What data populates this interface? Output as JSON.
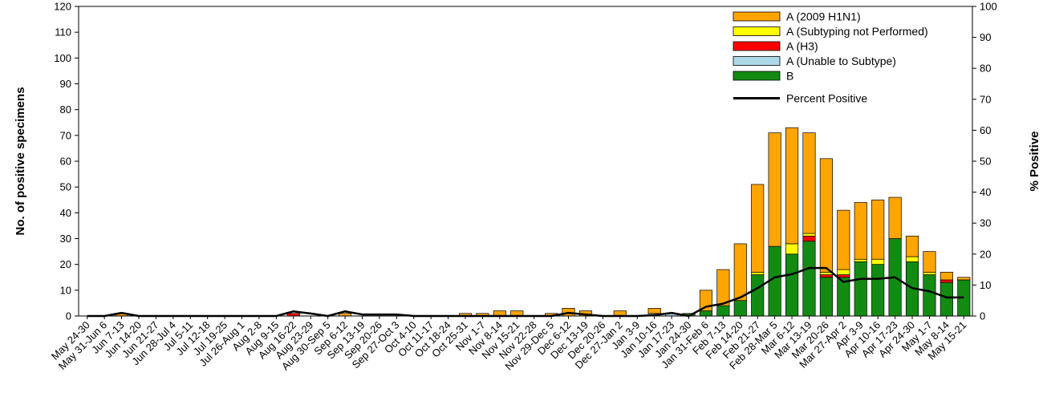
{
  "chart_data": {
    "type": "bar",
    "stacked": true,
    "title": "",
    "ylabel": "No. of positive specimens",
    "y2label": "% Positive",
    "ylim": [
      0,
      120
    ],
    "y2lim": [
      0,
      100
    ],
    "yticks": [
      "0",
      "10",
      "20",
      "30",
      "40",
      "50",
      "60",
      "70",
      "80",
      "90",
      "100",
      "110",
      "120"
    ],
    "y2ticks": [
      "0",
      "10",
      "20",
      "30",
      "40",
      "50",
      "60",
      "70",
      "80",
      "90",
      "100"
    ],
    "legend_position": "top-right",
    "categories": [
      "May 24-30",
      "May 31-Jun 6",
      "Jun 7-13",
      "Jun 14-20",
      "Jun 21-27",
      "Jun 28-Jul 4",
      "Jul 5-11",
      "Jul 12-18",
      "Jul 19-25",
      "Jul 26-Aug 1",
      "Aug 2-8",
      "Aug 9-15",
      "Aug 16-22",
      "Aug 23-29",
      "Aug 30-Sep 5",
      "Sep 6-12",
      "Sep 13-19",
      "Sep 20-26",
      "Sep 27-Oct 3",
      "Oct 4-10",
      "Oct 11-17",
      "Oct 18-24",
      "Oct 25-31",
      "Nov 1-7",
      "Nov 8-14",
      "Nov 15-21",
      "Nov 22-28",
      "Nov 29-Dec 5",
      "Dec 6-12",
      "Dec 13-19",
      "Dec 20-26",
      "Dec 27-Jan 2",
      "Jan 3-9",
      "Jan 10-16",
      "Jan 17-23",
      "Jan 24-30",
      "Jan 31-Feb 6",
      "Feb 7-13",
      "Feb 14-20",
      "Feb 21-27",
      "Feb 28-Mar 5",
      "Mar 6-12",
      "Mar 13-19",
      "Mar 20-26",
      "Mar 27-Apr 2",
      "Apr 3-9",
      "Apr 10-16",
      "Apr 17-23",
      "Apr 24-30",
      "May 1-7",
      "May 8-14",
      "May 15-21"
    ],
    "series": [
      {
        "name": "B",
        "color": "#138b13",
        "values": [
          0,
          0,
          0,
          0,
          0,
          0,
          0,
          0,
          0,
          0,
          0,
          0,
          0,
          0,
          0,
          0,
          0,
          0,
          0,
          0,
          0,
          0,
          0,
          0,
          0,
          0,
          0,
          0,
          0,
          0,
          0,
          0,
          0,
          0,
          0,
          1,
          2,
          4,
          6,
          16,
          27,
          24,
          29,
          15,
          15,
          21,
          20,
          30,
          21,
          16,
          13,
          14
        ]
      },
      {
        "name": "A (Unable to Subtype)",
        "color": "#add8e6",
        "values": [
          0,
          0,
          0,
          0,
          0,
          0,
          0,
          0,
          0,
          0,
          0,
          0,
          0,
          0,
          0,
          0,
          0,
          0,
          0,
          0,
          0,
          0,
          0,
          0,
          0,
          0,
          0,
          0,
          0,
          0,
          0,
          0,
          0,
          1,
          1,
          0,
          0,
          0,
          0,
          0,
          0,
          0,
          0,
          0,
          0,
          0,
          0,
          0,
          0,
          0,
          0,
          0
        ]
      },
      {
        "name": "A (H3)",
        "color": "#ff0000",
        "values": [
          0,
          0,
          0,
          0,
          0,
          0,
          0,
          0,
          0,
          0,
          0,
          0,
          1,
          0,
          0,
          0,
          0,
          0,
          0,
          0,
          0,
          0,
          0,
          0,
          0,
          0,
          0,
          0,
          0,
          0,
          0,
          0,
          0,
          0,
          0,
          0,
          0,
          0,
          0,
          0,
          0,
          0,
          2,
          1,
          1,
          0,
          0,
          0,
          0,
          0,
          1,
          0
        ]
      },
      {
        "name": "A (Subtyping not Performed)",
        "color": "#ffff00",
        "values": [
          0,
          0,
          0,
          0,
          0,
          0,
          0,
          0,
          0,
          0,
          0,
          0,
          0,
          0,
          0,
          0,
          0,
          0,
          0,
          0,
          0,
          0,
          0,
          0,
          0,
          0,
          0,
          0,
          0,
          0,
          0,
          0,
          0,
          0,
          0,
          0,
          0,
          0,
          0,
          1,
          0,
          4,
          1,
          1,
          2,
          1,
          2,
          0,
          2,
          1,
          0,
          0
        ]
      },
      {
        "name": "A (2009 H1N1)",
        "color": "#ffa500",
        "values": [
          0,
          0,
          1,
          0,
          0,
          0,
          0,
          0,
          0,
          0,
          0,
          0,
          0,
          0,
          0,
          1,
          0,
          0,
          0,
          0,
          0,
          0,
          1,
          1,
          2,
          2,
          0,
          1,
          3,
          2,
          0,
          2,
          0,
          2,
          0,
          0,
          8,
          14,
          22,
          34,
          44,
          45,
          39,
          44,
          23,
          22,
          23,
          16,
          8,
          8,
          3,
          1
        ]
      }
    ],
    "line": {
      "name": "Percent Positive",
      "color": "#000000",
      "values": [
        0,
        0,
        1,
        0,
        0,
        0,
        0,
        0,
        0,
        0,
        0,
        0,
        1.5,
        0.8,
        0,
        1.5,
        0.5,
        0.5,
        0.5,
        0,
        0,
        0,
        0,
        0,
        0,
        0,
        0,
        0,
        1,
        0.5,
        0,
        0,
        0,
        0.3,
        1,
        0,
        3,
        4,
        6,
        9,
        12.5,
        13.5,
        15.5,
        15.5,
        11,
        12,
        12,
        12.5,
        9,
        8,
        6,
        6
      ]
    }
  }
}
